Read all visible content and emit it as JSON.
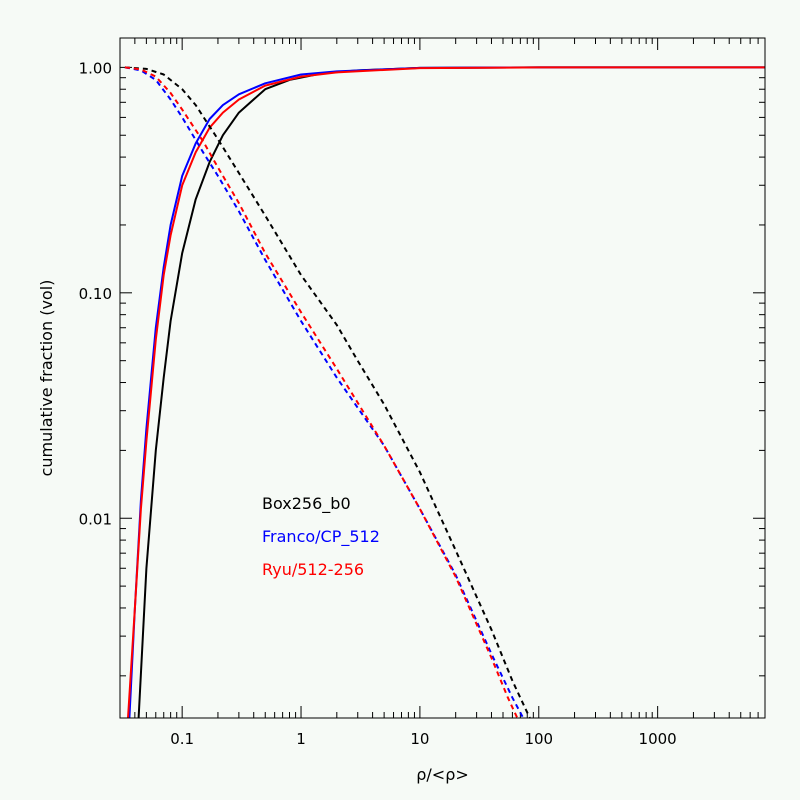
{
  "chart_data": {
    "type": "line",
    "xlabel": "ρ/<ρ>",
    "ylabel": "cumulative fraction (vol)",
    "x_scale": "log",
    "y_scale": "log",
    "xlim": [
      0.03,
      8000
    ],
    "ylim": [
      0.0013,
      1.35
    ],
    "x_ticks": [
      {
        "value": 0.1,
        "label": "0.1"
      },
      {
        "value": 1,
        "label": "1"
      },
      {
        "value": 10,
        "label": "10"
      },
      {
        "value": 100,
        "label": "100"
      },
      {
        "value": 1000,
        "label": "1000"
      }
    ],
    "y_ticks": [
      {
        "value": 0.01,
        "label": "0.01"
      },
      {
        "value": 0.1,
        "label": "0.10"
      },
      {
        "value": 1,
        "label": "1.00"
      }
    ],
    "legend": [
      "Box256_b0",
      "Franco/CP_512",
      "Ryu/512-256"
    ],
    "series": [
      {
        "name": "Box256_b0",
        "style": "solid",
        "color": "#000000",
        "x": [
          0.043,
          0.05,
          0.06,
          0.07,
          0.08,
          0.1,
          0.13,
          0.17,
          0.22,
          0.3,
          0.5,
          0.8,
          1.5,
          3,
          10,
          100,
          8000
        ],
        "y": [
          0.0013,
          0.006,
          0.02,
          0.042,
          0.075,
          0.15,
          0.26,
          0.38,
          0.5,
          0.63,
          0.8,
          0.88,
          0.94,
          0.97,
          0.995,
          1.0,
          1.0
        ]
      },
      {
        "name": "Franco/CP_512",
        "style": "solid",
        "color": "#0000ff",
        "x": [
          0.036,
          0.04,
          0.045,
          0.05,
          0.06,
          0.07,
          0.08,
          0.1,
          0.13,
          0.17,
          0.22,
          0.3,
          0.5,
          1,
          2,
          10,
          100,
          8000
        ],
        "y": [
          0.0013,
          0.004,
          0.012,
          0.025,
          0.07,
          0.13,
          0.2,
          0.33,
          0.46,
          0.59,
          0.68,
          0.76,
          0.85,
          0.93,
          0.96,
          0.995,
          1.0,
          1.0
        ]
      },
      {
        "name": "Ryu/512-256",
        "style": "solid",
        "color": "#ff0000",
        "x": [
          0.035,
          0.04,
          0.045,
          0.05,
          0.06,
          0.07,
          0.08,
          0.1,
          0.13,
          0.17,
          0.22,
          0.3,
          0.5,
          1,
          2,
          10,
          100,
          8000
        ],
        "y": [
          0.0013,
          0.004,
          0.011,
          0.022,
          0.062,
          0.12,
          0.18,
          0.3,
          0.42,
          0.54,
          0.63,
          0.72,
          0.83,
          0.91,
          0.95,
          0.993,
          1.0,
          1.0
        ]
      },
      {
        "name": "Box256_b0",
        "style": "dashed",
        "color": "#000000",
        "x": [
          0.033,
          0.05,
          0.07,
          0.1,
          0.13,
          0.2,
          0.3,
          0.5,
          1,
          2,
          3,
          5,
          10,
          20,
          40,
          60,
          84
        ],
        "y": [
          1.0,
          0.985,
          0.93,
          0.8,
          0.68,
          0.48,
          0.34,
          0.22,
          0.12,
          0.072,
          0.05,
          0.032,
          0.016,
          0.0072,
          0.0032,
          0.0019,
          0.0013
        ]
      },
      {
        "name": "Franco/CP_512",
        "style": "dashed",
        "color": "#0000ff",
        "x": [
          0.033,
          0.045,
          0.06,
          0.08,
          0.1,
          0.15,
          0.2,
          0.3,
          0.5,
          1,
          2,
          5,
          10,
          20,
          40,
          60,
          74
        ],
        "y": [
          1.0,
          0.97,
          0.88,
          0.72,
          0.6,
          0.42,
          0.33,
          0.23,
          0.14,
          0.075,
          0.042,
          0.021,
          0.011,
          0.0056,
          0.0025,
          0.0016,
          0.0013
        ]
      },
      {
        "name": "Ryu/512-256",
        "style": "dashed",
        "color": "#ff0000",
        "x": [
          0.033,
          0.045,
          0.06,
          0.08,
          0.1,
          0.15,
          0.2,
          0.3,
          0.5,
          1,
          2,
          5,
          10,
          20,
          40,
          55,
          66
        ],
        "y": [
          1.0,
          0.98,
          0.91,
          0.77,
          0.65,
          0.47,
          0.36,
          0.25,
          0.15,
          0.082,
          0.046,
          0.021,
          0.011,
          0.0055,
          0.0024,
          0.0016,
          0.0013
        ]
      }
    ]
  }
}
